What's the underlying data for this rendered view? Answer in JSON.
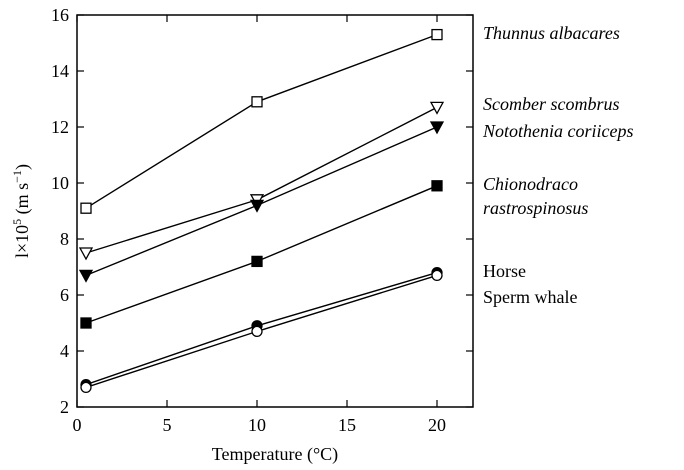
{
  "chart_data": {
    "type": "line",
    "xlabel": "Temperature (°C)",
    "ylabel": {
      "pre": "l×10",
      "sup1": "5",
      "mid": " (m s",
      "sup2": "−1",
      "post": ")"
    },
    "xlim": [
      0,
      22
    ],
    "ylim": [
      2,
      16
    ],
    "x_ticks": [
      0,
      5,
      10,
      15,
      20
    ],
    "y_ticks": [
      2,
      4,
      6,
      8,
      10,
      12,
      14,
      16
    ],
    "grid": false,
    "series": [
      {
        "name": "Thunnus albacares",
        "label_lines": [
          "Thunnus albacares"
        ],
        "italic": true,
        "marker": "open-square",
        "x": [
          0.5,
          10,
          20
        ],
        "values": [
          9.1,
          12.9,
          15.3
        ]
      },
      {
        "name": "Scomber scombrus",
        "label_lines": [
          "Scomber scombrus"
        ],
        "italic": true,
        "marker": "open-triangle-down",
        "x": [
          0.5,
          10,
          20
        ],
        "values": [
          7.5,
          9.4,
          12.7
        ]
      },
      {
        "name": "Notothenia coriiceps",
        "label_lines": [
          "Notothenia coriiceps"
        ],
        "italic": true,
        "marker": "filled-triangle-down",
        "x": [
          0.5,
          10,
          20
        ],
        "values": [
          6.7,
          9.2,
          12.0
        ]
      },
      {
        "name": "Chionodraco rastrospinosus",
        "label_lines": [
          "Chionodraco",
          "rastrospinosus"
        ],
        "italic": true,
        "marker": "filled-square",
        "x": [
          0.5,
          10,
          20
        ],
        "values": [
          5.0,
          7.2,
          9.9
        ]
      },
      {
        "name": "Horse",
        "label_lines": [
          "Horse"
        ],
        "italic": false,
        "marker": "filled-circle",
        "x": [
          0.5,
          10,
          20
        ],
        "values": [
          2.8,
          4.9,
          6.8
        ]
      },
      {
        "name": "Sperm whale",
        "label_lines": [
          "Sperm whale"
        ],
        "italic": false,
        "marker": "open-circle",
        "x": [
          0.5,
          10,
          20
        ],
        "values": [
          2.7,
          4.7,
          6.7
        ]
      }
    ]
  }
}
